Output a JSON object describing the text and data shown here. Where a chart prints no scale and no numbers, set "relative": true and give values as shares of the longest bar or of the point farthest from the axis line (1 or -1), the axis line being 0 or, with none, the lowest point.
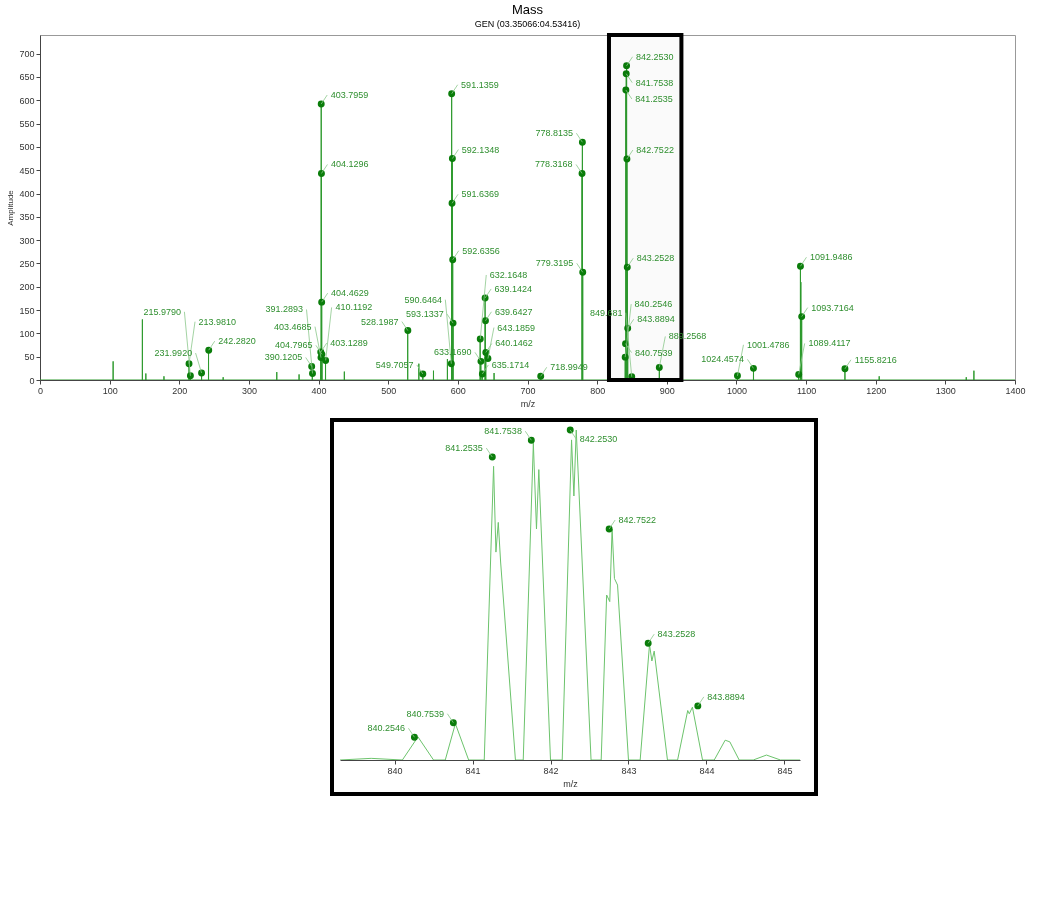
{
  "chart_data": [
    {
      "type": "line",
      "title": "Mass",
      "subtitle": "GEN (03.35066:04.53416)",
      "xlabel": "m/z",
      "ylabel": "Amplitude",
      "bands": [
        {
          "axis": "x",
          "from": 817,
          "to": 921,
          "color": "#000000"
        }
      ],
      "xlim": [
        0,
        1400
      ],
      "xticks": [
        0,
        100,
        200,
        300,
        400,
        500,
        600,
        700,
        800,
        900,
        1000,
        1100,
        1200,
        1300,
        1400
      ],
      "ylim": [
        0,
        740
      ],
      "yticks": [
        0,
        50,
        100,
        150,
        200,
        250,
        300,
        350,
        400,
        450,
        500,
        550,
        600,
        650,
        700
      ],
      "series": [
        {
          "color": "#2e9a2e",
          "x": [
            0,
            104.9,
            105,
            105.1,
            146.9,
            147,
            147.1,
            151.9,
            152,
            152.1,
            177.9,
            178,
            178.1,
            213.9,
            214,
            214.1,
            215.9,
            216,
            216.1,
            231.9,
            232,
            232.1,
            241.9,
            242,
            242.1,
            262.9,
            263,
            263.1,
            339.9,
            340,
            340.1,
            371.9,
            372,
            372.1,
            390.9,
            391,
            391.1,
            403.0,
            403.1,
            403.2,
            403.7,
            403.8,
            403.9,
            404.0,
            404.1,
            404.2,
            404.4,
            404.5,
            404.6,
            404.7,
            404.8,
            404.9,
            409.9,
            410,
            410.1,
            436.9,
            437,
            437.1,
            527.9,
            528,
            528.1,
            543.9,
            544,
            544.1,
            549.6,
            549.7,
            549.8,
            564.9,
            565,
            565.1,
            584.9,
            585,
            585.1,
            591.0,
            591.1,
            591.2,
            591.5,
            591.6,
            591.7,
            592.0,
            592.1,
            592.2,
            592.5,
            592.6,
            592.7,
            593.0,
            593.1,
            593.2,
            631.9,
            632,
            632.1,
            632.9,
            633,
            633.1,
            634.9,
            635,
            635.1,
            639.0,
            639.1,
            639.2,
            639.5,
            639.6,
            639.7,
            640.0,
            640.1,
            640.2,
            651.9,
            652,
            652.1,
            718.9,
            719,
            719.1,
            778.2,
            778.3,
            778.4,
            778.7,
            778.8,
            778.9,
            779.2,
            779.3,
            779.4,
            840.2,
            840.3,
            840.4,
            840.7,
            840.8,
            840.9,
            841.2,
            841.3,
            841.4,
            841.7,
            841.8,
            841.9,
            842.2,
            842.3,
            842.4,
            842.7,
            842.8,
            842.9,
            843.2,
            843.3,
            843.4,
            843.8,
            843.9,
            844.0,
            849.6,
            849.7,
            849.8,
            889.2,
            889.3,
            889.4,
            1001.4,
            1001.5,
            1001.6,
            1024.4,
            1024.5,
            1024.6,
            1089.3,
            1089.4,
            1089.5,
            1091.8,
            1091.9,
            1092.0,
            1092.4,
            1092.5,
            1092.6,
            1093.6,
            1093.7,
            1093.8,
            1155.7,
            1155.8,
            1155.9,
            1204.9,
            1205,
            1205.1,
            1329.9,
            1330,
            1330.1,
            1340.9,
            1341,
            1341.1,
            1400
          ],
          "values": [
            0,
            0,
            40,
            0,
            0,
            130,
            0,
            0,
            14,
            0,
            0,
            8,
            0,
            0,
            35,
            0,
            0,
            10,
            0,
            0,
            15,
            0,
            0,
            64,
            0,
            0,
            6,
            0,
            0,
            17,
            0,
            0,
            12,
            0,
            0,
            14,
            0,
            0,
            60,
            0,
            0,
            592,
            0,
            0,
            443,
            0,
            0,
            167,
            0,
            0,
            55,
            0,
            0,
            42,
            0,
            0,
            18,
            0,
            0,
            106,
            0,
            0,
            35,
            0,
            0,
            13,
            0,
            0,
            20,
            0,
            0,
            45,
            0,
            0,
            614,
            0,
            0,
            379,
            0,
            0,
            475,
            0,
            0,
            258,
            0,
            0,
            122,
            0,
            0,
            88,
            0,
            0,
            40,
            0,
            0,
            13,
            0,
            0,
            176,
            0,
            0,
            127,
            0,
            0,
            59,
            0,
            0,
            15,
            0,
            0,
            8,
            0,
            0,
            443,
            0,
            0,
            510,
            0,
            0,
            231,
            0,
            0,
            49,
            0,
            0,
            78,
            0,
            0,
            622,
            0,
            0,
            657,
            0,
            0,
            674,
            0,
            0,
            474,
            0,
            0,
            242,
            0,
            0,
            111,
            0,
            0,
            7,
            0,
            0,
            27,
            0,
            0,
            9,
            0,
            0,
            25,
            0,
            0,
            12,
            0,
            0,
            244,
            0,
            0,
            210,
            0,
            0,
            136,
            0,
            0,
            24,
            0,
            0,
            8,
            0,
            0,
            6,
            0,
            0,
            20,
            0,
            0
          ]
        },
        {
          "type": "scatter",
          "color": "#0a7d0a",
          "x": [
            213.981,
            215.979,
            231.992,
            242.282,
            390.1205,
            391.2893,
            403.1289,
            403.4685,
            403.7959,
            404.1296,
            404.4629,
            404.7965,
            410.1192,
            528.1987,
            549.7057,
            590.6464,
            591.1359,
            591.6369,
            592.1348,
            592.6356,
            593.1337,
            632.1648,
            633.169,
            635.1714,
            639.1424,
            639.6427,
            640.1462,
            643.1859,
            718.9949,
            778.3168,
            778.8135,
            779.3195,
            840.2546,
            840.7539,
            841.2535,
            841.7538,
            842.253,
            842.7522,
            843.2528,
            843.8894,
            849.681,
            889.2568,
            1001.4786,
            1024.4574,
            1089.4117,
            1091.9486,
            1093.7164,
            1155.8216
          ],
          "values": [
            35,
            9,
            15,
            64,
            29,
            14,
            60,
            48,
            592,
            443,
            167,
            55,
            42,
            106,
            13,
            35,
            614,
            379,
            475,
            258,
            122,
            88,
            40,
            13,
            176,
            127,
            59,
            46,
            8,
            443,
            510,
            231,
            49,
            78,
            622,
            657,
            674,
            474,
            242,
            111,
            7,
            27,
            9,
            25,
            12,
            244,
            136,
            24
          ]
        }
      ],
      "annotations": [
        {
          "text": "213.9810",
          "x": 213.981,
          "y": 35
        },
        {
          "text": "215.9790",
          "x": 215.979,
          "y": 9
        },
        {
          "text": "231.9920",
          "x": 231.992,
          "y": 15
        },
        {
          "text": "242.2820",
          "x": 242.282,
          "y": 64
        },
        {
          "text": "390.1205",
          "x": 390.1205,
          "y": 29
        },
        {
          "text": "391.2893",
          "x": 391.2893,
          "y": 14
        },
        {
          "text": "403.1289",
          "x": 403.1289,
          "y": 60
        },
        {
          "text": "403.4685",
          "x": 403.4685,
          "y": 48
        },
        {
          "text": "403.7959",
          "x": 403.7959,
          "y": 592
        },
        {
          "text": "404.1296",
          "x": 404.1296,
          "y": 443
        },
        {
          "text": "404.4629",
          "x": 404.4629,
          "y": 167
        },
        {
          "text": "404.7965",
          "x": 404.7965,
          "y": 55
        },
        {
          "text": "410.1192",
          "x": 410.1192,
          "y": 42
        },
        {
          "text": "528.1987",
          "x": 528.1987,
          "y": 106
        },
        {
          "text": "549.7057",
          "x": 549.7057,
          "y": 13
        },
        {
          "text": "590.6464",
          "x": 590.6464,
          "y": 35
        },
        {
          "text": "591.1359",
          "x": 591.1359,
          "y": 614
        },
        {
          "text": "591.6369",
          "x": 591.6369,
          "y": 379
        },
        {
          "text": "592.1348",
          "x": 592.1348,
          "y": 475
        },
        {
          "text": "592.6356",
          "x": 592.6356,
          "y": 258
        },
        {
          "text": "593.1337",
          "x": 593.1337,
          "y": 122
        },
        {
          "text": "632.1648",
          "x": 632.1648,
          "y": 88
        },
        {
          "text": "633.1690",
          "x": 633.169,
          "y": 40
        },
        {
          "text": "635.1714",
          "x": 635.1714,
          "y": 13
        },
        {
          "text": "639.1424",
          "x": 639.1424,
          "y": 176
        },
        {
          "text": "639.6427",
          "x": 639.6427,
          "y": 127
        },
        {
          "text": "640.1462",
          "x": 640.1462,
          "y": 59
        },
        {
          "text": "643.1859",
          "x": 643.1859,
          "y": 46
        },
        {
          "text": "718.9949",
          "x": 718.9949,
          "y": 8
        },
        {
          "text": "778.3168",
          "x": 778.3168,
          "y": 443
        },
        {
          "text": "778.8135",
          "x": 778.8135,
          "y": 510
        },
        {
          "text": "779.3195",
          "x": 779.3195,
          "y": 231
        },
        {
          "text": "840.2546",
          "x": 840.2546,
          "y": 49
        },
        {
          "text": "840.7539",
          "x": 840.7539,
          "y": 78
        },
        {
          "text": "841.2535",
          "x": 841.2535,
          "y": 622
        },
        {
          "text": "841.7538",
          "x": 841.7538,
          "y": 657
        },
        {
          "text": "842.2530",
          "x": 842.253,
          "y": 674
        },
        {
          "text": "842.7522",
          "x": 842.7522,
          "y": 474
        },
        {
          "text": "843.2528",
          "x": 843.2528,
          "y": 242
        },
        {
          "text": "843.8894",
          "x": 843.8894,
          "y": 111
        },
        {
          "text": "849.681",
          "x": 849.681,
          "y": 7
        },
        {
          "text": "889.2568",
          "x": 889.2568,
          "y": 27
        },
        {
          "text": "1001.4786",
          "x": 1001.4786,
          "y": 9
        },
        {
          "text": "1024.4574",
          "x": 1024.4574,
          "y": 25
        },
        {
          "text": "1089.4117",
          "x": 1089.4117,
          "y": 12
        },
        {
          "text": "1091.9486",
          "x": 1091.9486,
          "y": 244
        },
        {
          "text": "1093.7164",
          "x": 1093.7164,
          "y": 136
        },
        {
          "text": "1155.8216",
          "x": 1155.8216,
          "y": 24
        }
      ]
    },
    {
      "type": "line",
      "xlabel": "m/z",
      "xlim": [
        839.3,
        845.2
      ],
      "xticks": [
        840,
        841,
        842,
        843,
        844,
        845
      ],
      "relative": true,
      "series": [
        {
          "color": "#6cc36c",
          "x": [
            839.3,
            839.7,
            840.1,
            840.3,
            840.5,
            840.65,
            840.78,
            840.95,
            841.15,
            841.27,
            841.3,
            841.33,
            841.36,
            841.55,
            841.65,
            841.78,
            841.82,
            841.85,
            842.0,
            842.15,
            842.27,
            842.3,
            842.33,
            842.52,
            842.65,
            842.72,
            842.76,
            842.79,
            842.82,
            842.86,
            843.0,
            843.15,
            843.27,
            843.3,
            843.33,
            843.5,
            843.63,
            843.76,
            843.78,
            843.82,
            843.95,
            844.1,
            844.24,
            844.3,
            844.42,
            844.6,
            844.77,
            844.95,
            845.2
          ],
          "values": [
            0,
            0.005,
            0,
            0.07,
            0,
            0,
            0.11,
            0,
            0,
            0.89,
            0.63,
            0.72,
            0.6,
            0,
            0,
            0.96,
            0.7,
            0.88,
            0,
            0,
            0.97,
            0.8,
            1.0,
            0,
            0,
            0.5,
            0.48,
            0.7,
            0.55,
            0.53,
            0,
            0,
            0.35,
            0.3,
            0.33,
            0,
            0,
            0.15,
            0.14,
            0.16,
            0,
            0,
            0.06,
            0.055,
            0,
            0,
            0.015,
            0,
            0
          ]
        },
        {
          "type": "scatter",
          "color": "#0a7d0a",
          "x": [
            840.2546,
            840.7539,
            841.2535,
            841.7538,
            842.253,
            842.7522,
            843.2528,
            843.8894
          ],
          "values": [
            0.069,
            0.113,
            0.918,
            0.969,
            1.0,
            0.7,
            0.354,
            0.164
          ]
        }
      ],
      "annotations": [
        {
          "text": "840.2546",
          "x": 840.2546,
          "y": 0.069
        },
        {
          "text": "840.7539",
          "x": 840.7539,
          "y": 0.113
        },
        {
          "text": "841.2535",
          "x": 841.2535,
          "y": 0.918
        },
        {
          "text": "841.7538",
          "x": 841.7538,
          "y": 0.969
        },
        {
          "text": "842.2530",
          "x": 842.253,
          "y": 1.0
        },
        {
          "text": "842.7522",
          "x": 842.7522,
          "y": 0.7
        },
        {
          "text": "843.2528",
          "x": 843.2528,
          "y": 0.354
        },
        {
          "text": "843.8894",
          "x": 843.8894,
          "y": 0.164
        }
      ]
    }
  ]
}
